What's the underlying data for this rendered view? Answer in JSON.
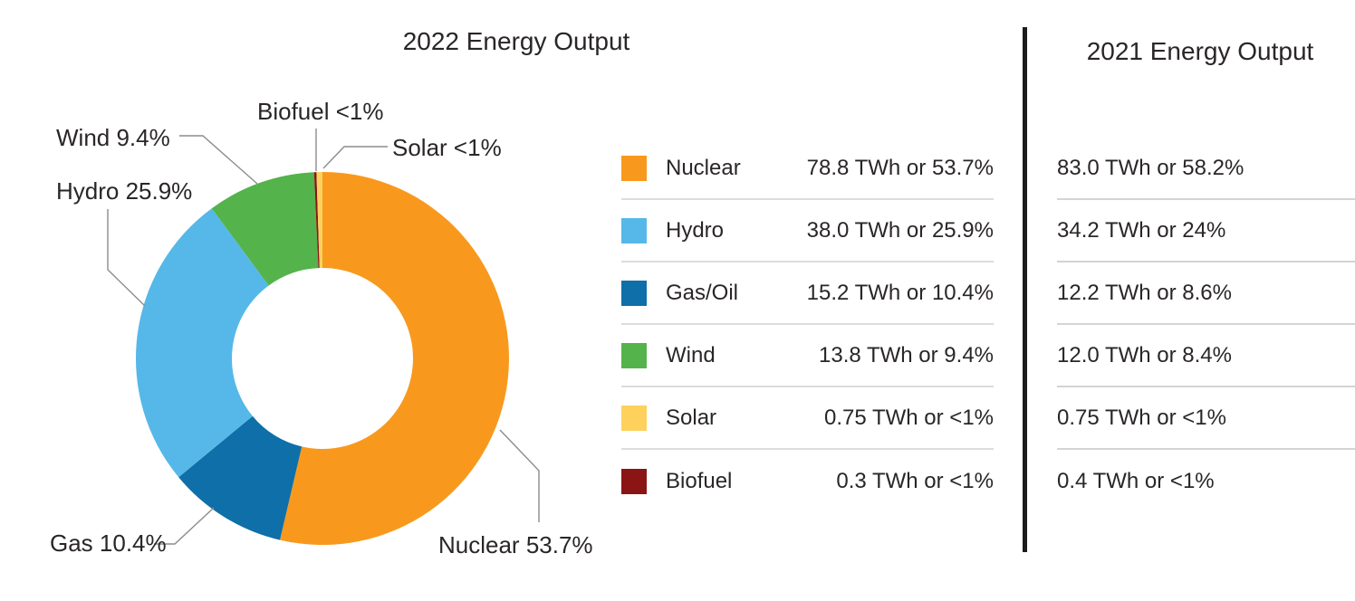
{
  "left_panel": {
    "title": "2022 Energy Output",
    "callouts": {
      "biofuel": "Biofuel <1%",
      "solar": "Solar <1%",
      "wind": "Wind 9.4%",
      "hydro": "Hydro 25.9%",
      "gas": "Gas 10.4%",
      "nuclear": "Nuclear 53.7%"
    }
  },
  "legend": {
    "rows": [
      {
        "name": "Nuclear",
        "value": "78.8 TWh or 53.7%"
      },
      {
        "name": "Hydro",
        "value": "38.0 TWh or 25.9%"
      },
      {
        "name": "Gas/Oil",
        "value": "15.2 TWh or 10.4%"
      },
      {
        "name": "Wind",
        "value": "13.8 TWh or 9.4%"
      },
      {
        "name": "Solar",
        "value": "0.75 TWh or <1%"
      },
      {
        "name": "Biofuel",
        "value": "0.3 TWh or <1%"
      }
    ]
  },
  "right_panel": {
    "title": "2021 Energy Output",
    "rows": [
      {
        "value": "83.0 TWh or 58.2%"
      },
      {
        "value": "34.2 TWh or 24%"
      },
      {
        "value": "12.2 TWh or 8.6%"
      },
      {
        "value": "12.0 TWh or 8.4%"
      },
      {
        "value": "0.75 TWh or <1%"
      },
      {
        "value": "0.4 TWh or <1%"
      }
    ]
  },
  "chart_data": {
    "type": "pie",
    "donut": true,
    "title": "2022 Energy Output",
    "unit": "TWh",
    "slices": [
      {
        "name": "Nuclear",
        "twh": 78.8,
        "percent_label": "53.7%",
        "color": "#F8991D"
      },
      {
        "name": "Hydro",
        "twh": 38.0,
        "percent_label": "25.9%",
        "color": "#55B8E8"
      },
      {
        "name": "Gas/Oil",
        "twh": 15.2,
        "percent_label": "10.4%",
        "color": "#0F6FA8"
      },
      {
        "name": "Wind",
        "twh": 13.8,
        "percent_label": "9.4%",
        "color": "#54B34B"
      },
      {
        "name": "Solar",
        "twh": 0.75,
        "percent_label": "<1%",
        "color": "#FDD15C"
      },
      {
        "name": "Biofuel",
        "twh": 0.3,
        "percent_label": "<1%",
        "color": "#8B1515"
      }
    ],
    "clockwise_order": [
      "Nuclear",
      "Gas/Oil",
      "Hydro",
      "Wind",
      "Biofuel",
      "Solar"
    ],
    "comparison_2021": {
      "title": "2021 Energy Output",
      "values": [
        {
          "name": "Nuclear",
          "twh": 83.0,
          "percent_label": "58.2%"
        },
        {
          "name": "Hydro",
          "twh": 34.2,
          "percent_label": "24%"
        },
        {
          "name": "Gas/Oil",
          "twh": 12.2,
          "percent_label": "8.6%"
        },
        {
          "name": "Wind",
          "twh": 12.0,
          "percent_label": "8.4%"
        },
        {
          "name": "Solar",
          "twh": 0.75,
          "percent_label": "<1%"
        },
        {
          "name": "Biofuel",
          "twh": 0.4,
          "percent_label": "<1%"
        }
      ]
    }
  }
}
